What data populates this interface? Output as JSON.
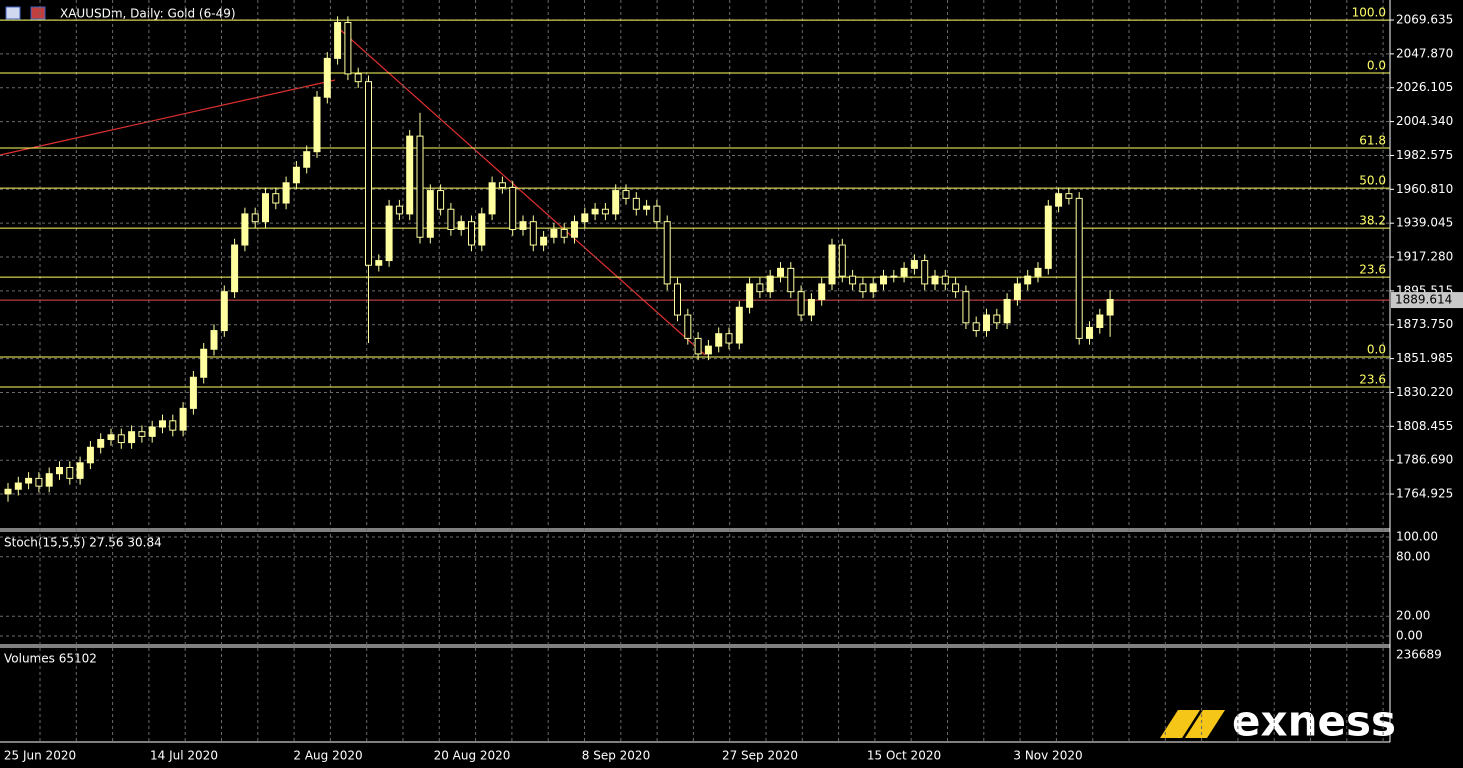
{
  "chart_data": {
    "type": "candlestick",
    "title": "XAUUSDm, Daily:  Gold (6-49)",
    "ylim": [
      1743.1,
      2082.5
    ],
    "yticks": [
      {
        "value": 2069.635,
        "label": "2069.635"
      },
      {
        "value": 2047.87,
        "label": "2047.870"
      },
      {
        "value": 2026.105,
        "label": "2026.105"
      },
      {
        "value": 2004.34,
        "label": "2004.340"
      },
      {
        "value": 1982.575,
        "label": "1982.575"
      },
      {
        "value": 1960.81,
        "label": "1960.810"
      },
      {
        "value": 1939.045,
        "label": "1939.045"
      },
      {
        "value": 1917.28,
        "label": "1917.280"
      },
      {
        "value": 1895.515,
        "label": "1895.515"
      },
      {
        "value": 1873.75,
        "label": "1873.750"
      },
      {
        "value": 1851.985,
        "label": "1851.985"
      },
      {
        "value": 1830.22,
        "label": "1830.220"
      },
      {
        "value": 1808.455,
        "label": "1808.455"
      },
      {
        "value": 1786.69,
        "label": "1786.690"
      },
      {
        "value": 1764.925,
        "label": "1764.925"
      }
    ],
    "x_labels": [
      "25 Jun 2020",
      "14 Jul 2020",
      "2 Aug 2020",
      "20 Aug 2020",
      "8 Sep 2020",
      "27 Sep 2020",
      "15 Oct 2020",
      "3 Nov 2020"
    ],
    "current_price": 1889.614,
    "bull_color": "#ffffa0",
    "bear_color": "#000000",
    "fib_color": "#ffff66",
    "grid": true,
    "fib_levels": [
      {
        "label": "100.0",
        "value": 2069.6
      },
      {
        "label": "0.0",
        "value": 2035.6
      },
      {
        "label": "61.8",
        "value": 1987.4
      },
      {
        "label": "50.0",
        "value": 1961.6
      },
      {
        "label": "38.2",
        "value": 1935.9
      },
      {
        "label": "23.6",
        "value": 1904.4
      },
      {
        "label": "0.0",
        "value": 1853.0
      },
      {
        "label": "23.6",
        "value": 1833.7
      }
    ],
    "open": [
      1765,
      1768,
      1772,
      1775,
      1770,
      1778,
      1782,
      1775,
      1785,
      1795,
      1800,
      1803,
      1798,
      1805,
      1802,
      1808,
      1812,
      1806,
      1820,
      1840,
      1858,
      1870,
      1895,
      1925,
      1945,
      1940,
      1958,
      1952,
      1965,
      1975,
      1985,
      2020,
      2045,
      2068,
      2035,
      2030,
      1912,
      1915,
      1950,
      1945,
      1995,
      1930,
      1960,
      1948,
      1935,
      1940,
      1925,
      1945,
      1965,
      1962,
      1935,
      1940,
      1925,
      1930,
      1935,
      1930,
      1940,
      1945,
      1948,
      1945,
      1960,
      1955,
      1948,
      1950,
      1940,
      1900,
      1880,
      1865,
      1855,
      1860,
      1868,
      1862,
      1885,
      1900,
      1895,
      1905,
      1910,
      1895,
      1880,
      1890,
      1900,
      1925,
      1905,
      1900,
      1895,
      1900,
      1905,
      1905,
      1910,
      1915,
      1900,
      1905,
      1900,
      1895,
      1875,
      1870,
      1880,
      1875,
      1890,
      1900,
      1905,
      1910,
      1950,
      1958,
      1955,
      1865,
      1872,
      1880
    ],
    "high": [
      1772,
      1776,
      1779,
      1779,
      1782,
      1786,
      1786,
      1789,
      1799,
      1804,
      1807,
      1807,
      1809,
      1809,
      1812,
      1816,
      1816,
      1824,
      1844,
      1862,
      1874,
      1899,
      1929,
      1949,
      1949,
      1962,
      1962,
      1969,
      1979,
      1989,
      2024,
      2049,
      2072,
      2072,
      2039,
      2034,
      1919,
      1954,
      1954,
      1999,
      2010,
      1964,
      1964,
      1952,
      1944,
      1944,
      1949,
      1969,
      1969,
      1966,
      1944,
      1944,
      1934,
      1939,
      1939,
      1944,
      1949,
      1952,
      1952,
      1964,
      1964,
      1959,
      1954,
      1954,
      1944,
      1904,
      1884,
      1869,
      1864,
      1872,
      1872,
      1889,
      1904,
      1904,
      1909,
      1914,
      1914,
      1899,
      1894,
      1904,
      1929,
      1929,
      1909,
      1904,
      1904,
      1909,
      1909,
      1914,
      1919,
      1919,
      1909,
      1909,
      1904,
      1899,
      1879,
      1884,
      1884,
      1894,
      1904,
      1909,
      1914,
      1954,
      1962,
      1962,
      1959,
      1876,
      1884,
      1896
    ],
    "low": [
      1760,
      1764,
      1768,
      1766,
      1766,
      1774,
      1771,
      1771,
      1781,
      1791,
      1796,
      1794,
      1794,
      1798,
      1798,
      1804,
      1802,
      1802,
      1816,
      1836,
      1854,
      1866,
      1891,
      1921,
      1936,
      1936,
      1948,
      1948,
      1961,
      1971,
      1981,
      2016,
      2041,
      2031,
      2026,
      1862,
      1908,
      1911,
      1941,
      1941,
      1926,
      1926,
      1944,
      1931,
      1931,
      1921,
      1921,
      1941,
      1958,
      1931,
      1931,
      1921,
      1921,
      1926,
      1926,
      1926,
      1936,
      1941,
      1941,
      1941,
      1951,
      1944,
      1944,
      1936,
      1896,
      1876,
      1861,
      1851,
      1851,
      1856,
      1858,
      1858,
      1881,
      1891,
      1891,
      1901,
      1891,
      1876,
      1876,
      1886,
      1896,
      1901,
      1896,
      1891,
      1891,
      1896,
      1901,
      1901,
      1906,
      1896,
      1896,
      1896,
      1891,
      1871,
      1866,
      1866,
      1871,
      1871,
      1886,
      1896,
      1901,
      1906,
      1946,
      1951,
      1861,
      1861,
      1868,
      1866
    ],
    "close": [
      1768,
      1772,
      1775,
      1770,
      1778,
      1782,
      1775,
      1785,
      1795,
      1800,
      1803,
      1798,
      1805,
      1802,
      1808,
      1812,
      1806,
      1820,
      1840,
      1858,
      1870,
      1895,
      1925,
      1945,
      1940,
      1958,
      1952,
      1965,
      1975,
      1985,
      2020,
      2045,
      2068,
      2035,
      2030,
      1912,
      1915,
      1950,
      1945,
      1995,
      1930,
      1960,
      1948,
      1935,
      1940,
      1925,
      1945,
      1965,
      1962,
      1935,
      1940,
      1925,
      1930,
      1935,
      1930,
      1940,
      1945,
      1948,
      1945,
      1960,
      1955,
      1948,
      1950,
      1940,
      1900,
      1880,
      1865,
      1855,
      1860,
      1868,
      1862,
      1885,
      1900,
      1895,
      1905,
      1910,
      1895,
      1880,
      1890,
      1900,
      1925,
      1905,
      1900,
      1895,
      1900,
      1905,
      1905,
      1910,
      1915,
      1900,
      1905,
      1900,
      1895,
      1875,
      1870,
      1880,
      1875,
      1890,
      1900,
      1905,
      1910,
      1950,
      1958,
      1955,
      1865,
      1872,
      1880,
      1890
    ],
    "stoch_label": "Stoch(15,5,5) 27.56 30.84",
    "stoch_ylim": [
      0,
      100
    ],
    "stoch_yticks": [
      {
        "value": 100,
        "label": "100.00"
      },
      {
        "value": 80,
        "label": "80.00"
      },
      {
        "value": 20,
        "label": "20.00"
      },
      {
        "value": 0,
        "label": "0.00"
      }
    ],
    "volume_label": "Volumes 65102",
    "volume_max": 236689,
    "brand": "exness"
  }
}
